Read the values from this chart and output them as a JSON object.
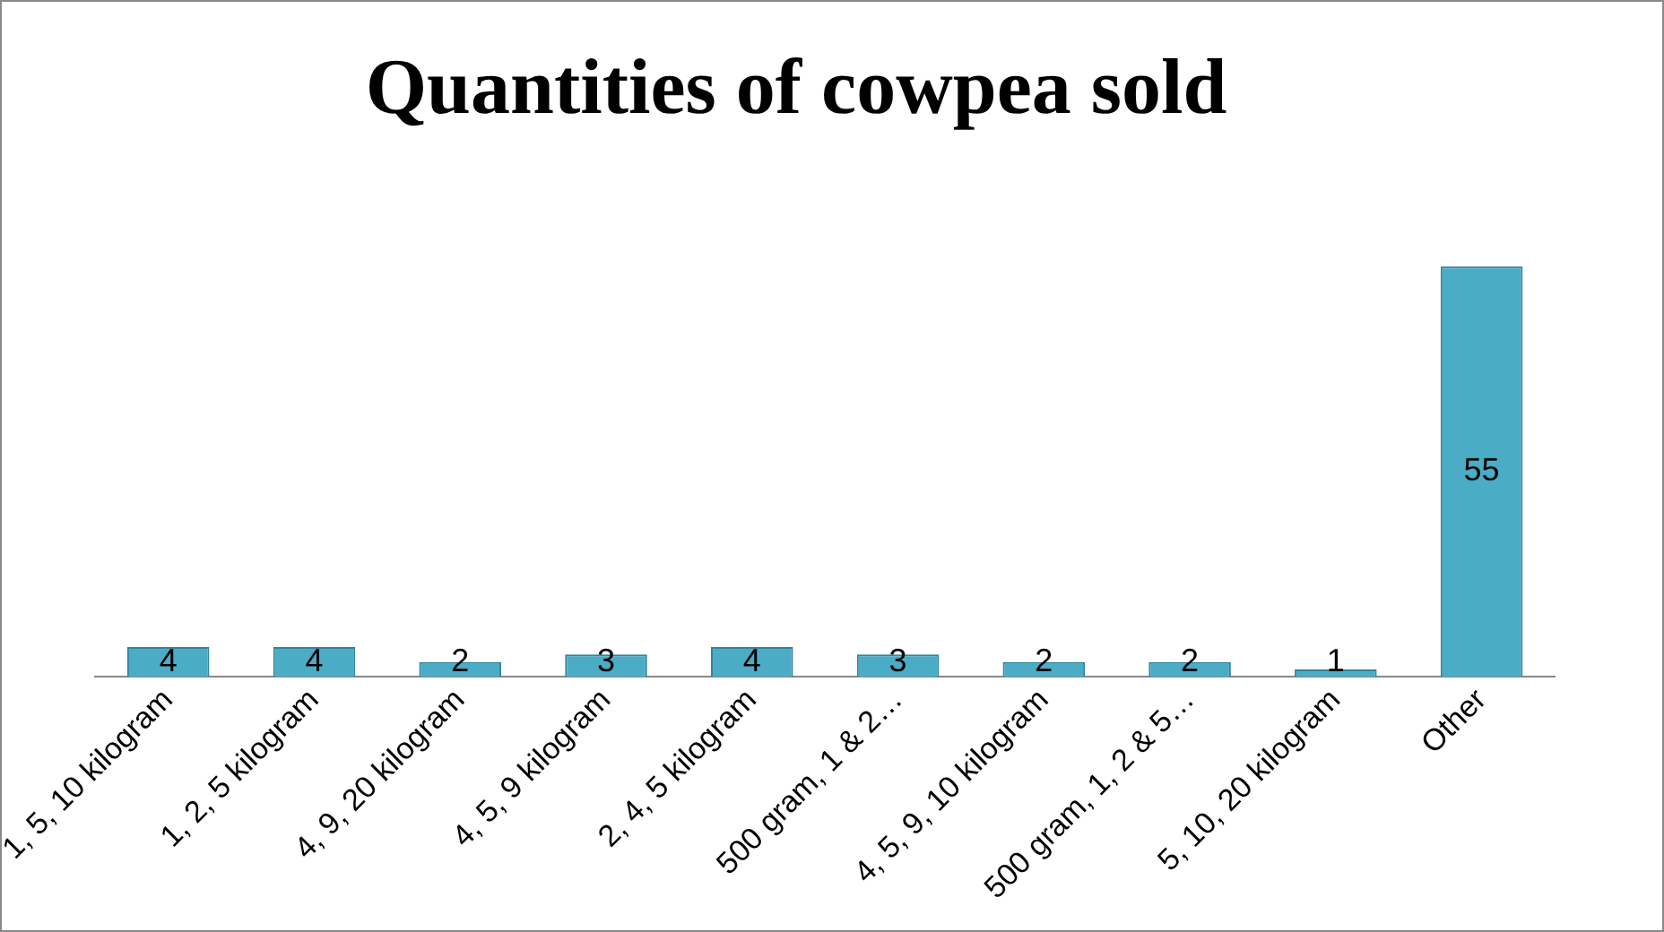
{
  "chart_data": {
    "type": "bar",
    "title": "Quantities of cowpea sold",
    "categories": [
      "1, 5, 10 kilogram",
      "1, 2, 5 kilogram",
      "4, 9, 20 kilogram",
      "4, 5, 9 kilogram",
      "2, 4, 5 kilogram",
      "500 gram, 1 & 2…",
      "4, 5, 9, 10 kilogram",
      "500 gram, 1, 2 & 5…",
      "5, 10, 20 kilogram",
      "Other"
    ],
    "values": [
      4,
      4,
      2,
      3,
      4,
      3,
      2,
      2,
      1,
      55
    ],
    "color": "#4bacc6",
    "data_labels": true,
    "grid": false,
    "legend": false,
    "tick_labels": "x"
  }
}
